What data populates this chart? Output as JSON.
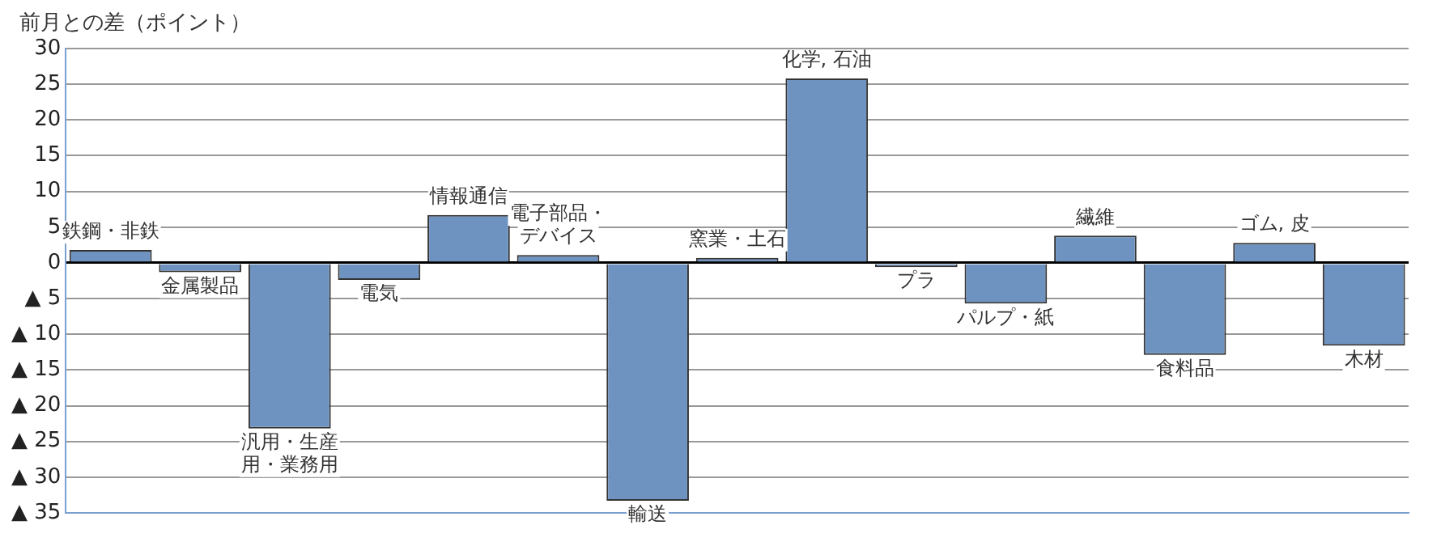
{
  "chart_data": {
    "type": "bar",
    "ylabel": "前月との差（ポイント）",
    "categories": [
      "鉄鋼・非鉄",
      "金属製品",
      "汎用・生産用・業務用",
      "電気",
      "情報通信",
      "電子部品・デバイス",
      "輸送",
      "窯業・土石",
      "化学, 石油",
      "プラ",
      "パルプ・紙",
      "繊維",
      "食料品",
      "ゴム, 皮",
      "木材"
    ],
    "values": [
      1.8,
      -1.3,
      -23.2,
      -2.4,
      6.7,
      1.1,
      -33.3,
      0.7,
      25.8,
      -0.6,
      -5.7,
      3.8,
      -12.9,
      2.8,
      -11.6
    ],
    "color": "#6f93c0",
    "ylim": [
      -35,
      30
    ],
    "yticks": [
      {
        "value": -35,
        "label": "▲ 35"
      },
      {
        "value": -30,
        "label": "▲ 30"
      },
      {
        "value": -25,
        "label": "▲ 25"
      },
      {
        "value": -20,
        "label": "▲ 20"
      },
      {
        "value": -15,
        "label": "▲ 15"
      },
      {
        "value": -10,
        "label": "▲ 10"
      },
      {
        "value": -5,
        "label": "▲ 5"
      },
      0,
      5,
      10,
      15,
      20,
      25,
      30
    ],
    "grid": "y",
    "tick_labels": "y"
  }
}
